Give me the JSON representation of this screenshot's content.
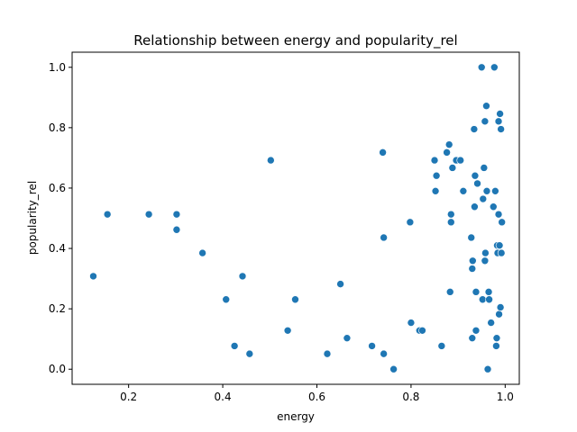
{
  "chart_data": {
    "type": "scatter",
    "title": "Relationship between energy and popularity_rel",
    "xlabel": "energy",
    "ylabel": "popularity_rel",
    "xlim": [
      0.08,
      1.03
    ],
    "ylim": [
      -0.05,
      1.05
    ],
    "xticks": [
      0.2,
      0.4,
      0.6,
      0.8,
      1.0
    ],
    "yticks": [
      0.0,
      0.2,
      0.4,
      0.6,
      0.8,
      1.0
    ],
    "xtick_labels": [
      "0.2",
      "0.4",
      "0.6",
      "0.8",
      "1.0"
    ],
    "ytick_labels": [
      "0.0",
      "0.2",
      "0.4",
      "0.6",
      "0.8",
      "1.0"
    ],
    "grid": false,
    "legend": null,
    "marker_color": "#1f77b4",
    "series": [
      {
        "x": [
          0.125,
          0.155,
          0.243,
          0.302,
          0.302,
          0.357,
          0.407,
          0.425,
          0.442,
          0.457,
          0.502,
          0.538,
          0.554,
          0.622,
          0.65,
          0.664,
          0.717,
          0.74,
          0.742,
          0.742,
          0.763,
          0.798,
          0.8,
          0.818,
          0.824,
          0.85,
          0.852,
          0.854,
          0.865,
          0.876,
          0.881,
          0.883,
          0.885,
          0.885,
          0.888,
          0.896,
          0.905,
          0.911,
          0.928,
          0.93,
          0.93,
          0.931,
          0.934,
          0.935,
          0.936,
          0.938,
          0.938,
          0.941,
          0.95,
          0.952,
          0.953,
          0.955,
          0.957,
          0.957,
          0.958,
          0.96,
          0.961,
          0.963,
          0.965,
          0.966,
          0.97,
          0.975,
          0.977,
          0.979,
          0.981,
          0.982,
          0.983,
          0.984,
          0.986,
          0.986,
          0.987,
          0.988,
          0.989,
          0.99,
          0.991,
          0.992,
          0.993
        ],
        "y": [
          0.308,
          0.513,
          0.513,
          0.513,
          0.462,
          0.385,
          0.231,
          0.077,
          0.308,
          0.051,
          0.692,
          0.128,
          0.231,
          0.051,
          0.282,
          0.103,
          0.077,
          0.718,
          0.436,
          0.051,
          0.0,
          0.487,
          0.154,
          0.128,
          0.128,
          0.692,
          0.59,
          0.641,
          0.077,
          0.718,
          0.744,
          0.256,
          0.487,
          0.513,
          0.667,
          0.692,
          0.692,
          0.59,
          0.436,
          0.103,
          0.333,
          0.359,
          0.795,
          0.538,
          0.641,
          0.256,
          0.128,
          0.615,
          1.0,
          0.231,
          0.564,
          0.667,
          0.821,
          0.359,
          0.385,
          0.872,
          0.59,
          0.0,
          0.256,
          0.231,
          0.154,
          0.538,
          1.0,
          0.59,
          0.077,
          0.103,
          0.41,
          0.385,
          0.821,
          0.513,
          0.182,
          0.41,
          0.846,
          0.205,
          0.795,
          0.385,
          0.487
        ]
      }
    ]
  }
}
